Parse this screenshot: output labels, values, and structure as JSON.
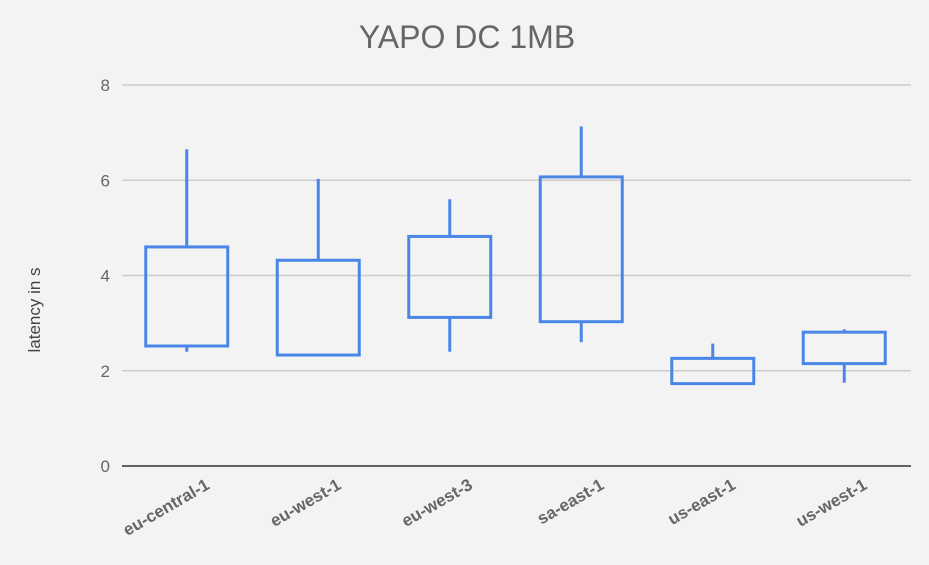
{
  "chart_data": {
    "type": "candlestick",
    "title": "YAPO DC 1MB",
    "xlabel": "",
    "ylabel": "latency in s",
    "ylim": [
      0,
      8
    ],
    "yticks": [
      0,
      2,
      4,
      6,
      8
    ],
    "grid": true,
    "legend": "none",
    "color": "#4a86e8",
    "categories": [
      "eu-central-1",
      "eu-west-1",
      "eu-west-3",
      "sa-east-1",
      "us-east-1",
      "us-west-1"
    ],
    "low": [
      2.4,
      2.35,
      2.4,
      2.6,
      1.75,
      1.75
    ],
    "open": [
      2.52,
      2.33,
      3.12,
      3.03,
      1.73,
      2.15
    ],
    "close": [
      4.6,
      4.32,
      4.82,
      6.07,
      2.26,
      2.81
    ],
    "high": [
      6.65,
      6.03,
      5.6,
      7.13,
      2.57,
      2.87
    ]
  }
}
